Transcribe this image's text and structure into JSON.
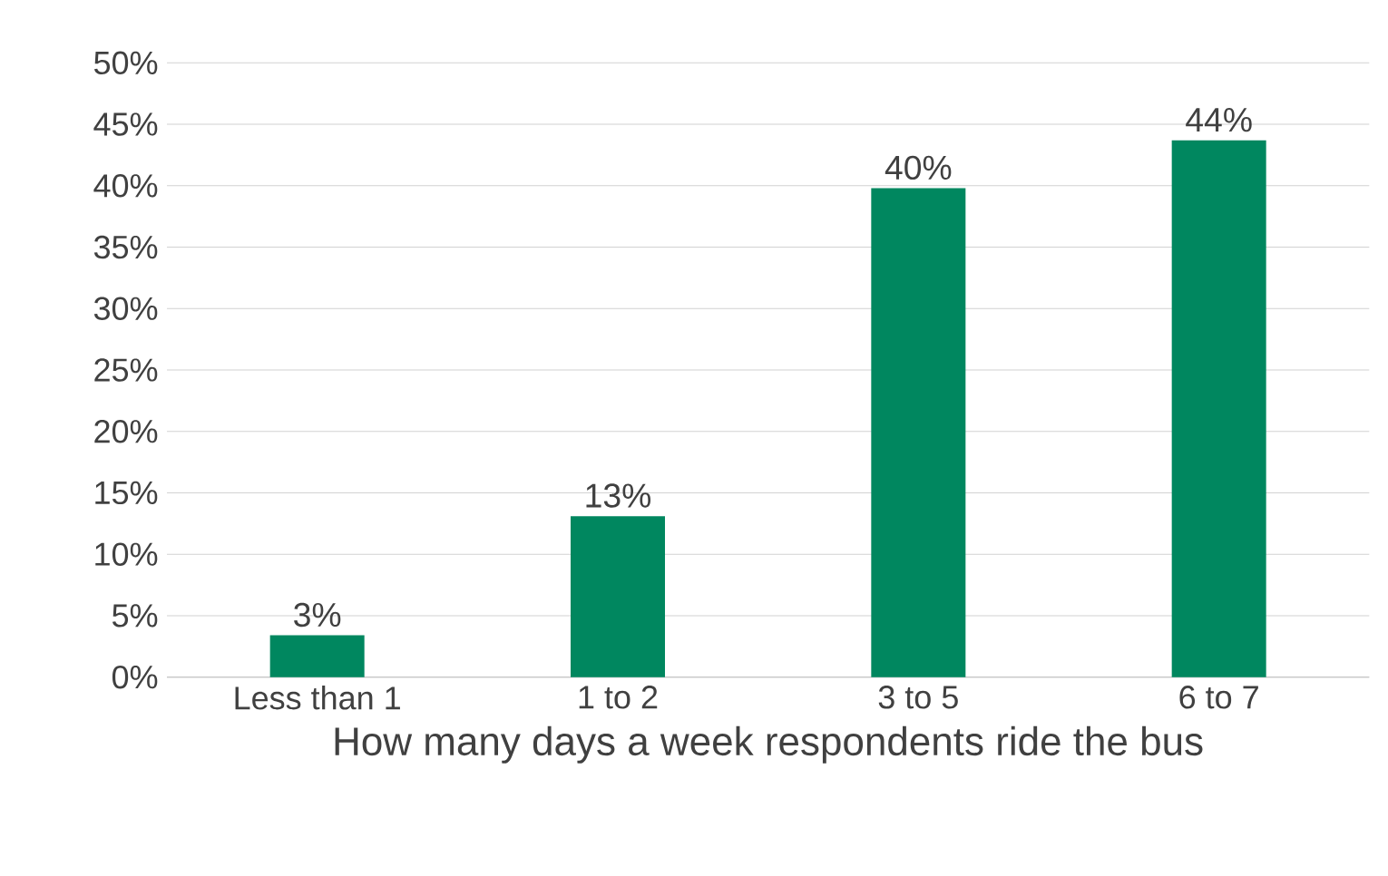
{
  "chart_data": {
    "type": "bar",
    "xlabel": "How many days a week respondents ride the bus",
    "categories": [
      "Less than 1",
      "1 to 2",
      "3 to 5",
      "6 to 7"
    ],
    "values": [
      3.4,
      13.1,
      39.8,
      43.7
    ],
    "value_labels": [
      "3%",
      "13%",
      "40%",
      "44%"
    ],
    "color": "#00875f",
    "ylim": [
      0,
      50
    ],
    "yticks": [
      {
        "value": 0,
        "label": "0%"
      },
      {
        "value": 5,
        "label": "5%"
      },
      {
        "value": 10,
        "label": "10%"
      },
      {
        "value": 15,
        "label": "15%"
      },
      {
        "value": 20,
        "label": "20%"
      },
      {
        "value": 25,
        "label": "25%"
      },
      {
        "value": 30,
        "label": "30%"
      },
      {
        "value": 35,
        "label": "35%"
      },
      {
        "value": 40,
        "label": "40%"
      },
      {
        "value": 45,
        "label": "45%"
      },
      {
        "value": 50,
        "label": "50%"
      }
    ],
    "grid": "y"
  }
}
